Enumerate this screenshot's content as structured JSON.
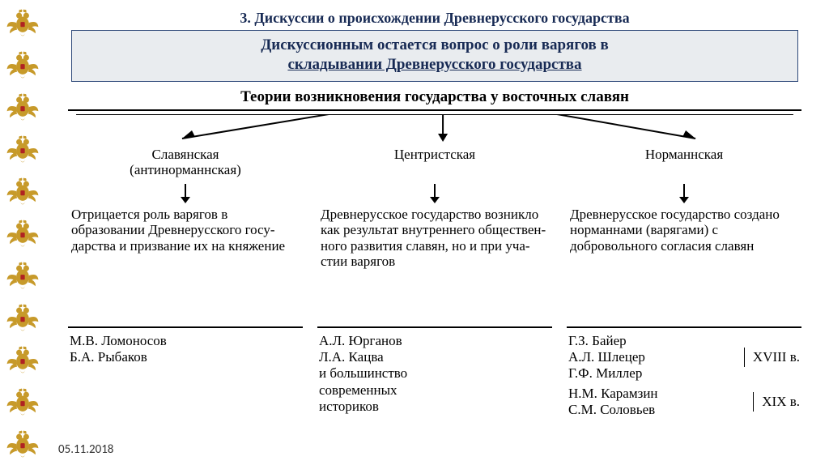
{
  "eagle_count": 11,
  "eagle_color": "#c79a2a",
  "eagle_shield": "#b02222",
  "section_title": "3. Дискуссии о происхождении Древнерусского государства",
  "highlight_line1": "Дискуссионным остается вопрос о роли варягов в",
  "highlight_line2": "складывании Древнерусского государства",
  "tree_title": "Теории возникновения государства у восточных славян",
  "arrow_color": "#000000",
  "columns": [
    {
      "name_l1": "Славянская",
      "name_l2": "(антинорманнская)",
      "body": "Отрицается роль варя­гов в образовании Древнерусского госу­дарства и призвание их на княжение",
      "authors": [
        {
          "names": "М.В. Ломоносов\nБ.А. Рыбаков",
          "century": ""
        }
      ]
    },
    {
      "name_l1": "Центристская",
      "name_l2": "",
      "body": "Древнерусское госу­дарство возникло как результат внут­реннего обществен­ного развития сла­вян, но и при уча­стии варягов",
      "authors": [
        {
          "names": "А.Л. Юрганов\nЛ.А. Кацва\nи большинство\nсовременных\nисториков",
          "century": ""
        }
      ]
    },
    {
      "name_l1": "Норманнская",
      "name_l2": "",
      "body": "Древнерусское госу­дарство создано нор­маннами (варягами) с добровольного согла­сия славян",
      "authors": [
        {
          "names": "Г.З. Байер\nА.Л. Шлецер\nГ.Ф. Миллер",
          "century": "XVIII в."
        },
        {
          "names": "Н.М. Карамзин\nС.М. Соловьев",
          "century": "XIX в."
        }
      ]
    }
  ],
  "date": "05.11.2018"
}
